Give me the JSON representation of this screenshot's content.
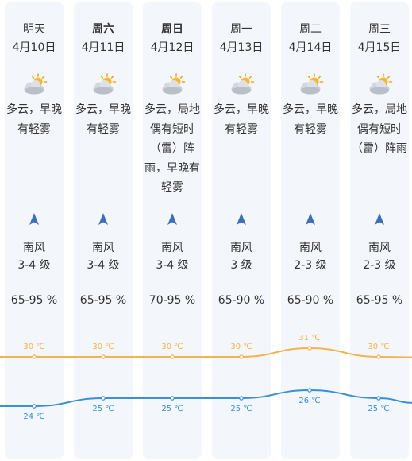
{
  "days": [
    {
      "day": "明天",
      "bold": false,
      "date": "4月10日",
      "weather_icon": "partly-cloudy-icon",
      "desc": [
        "多云，早晚",
        "有轻雾"
      ],
      "wind_direction_icon": "wind-arrow-icon",
      "wind_dir": "南风",
      "wind_level": "3-4 级",
      "humidity": "65-95 %"
    },
    {
      "day": "周六",
      "bold": true,
      "date": "4月11日",
      "weather_icon": "partly-cloudy-icon",
      "desc": [
        "多云，早晚",
        "有轻雾"
      ],
      "wind_direction_icon": "wind-arrow-icon",
      "wind_dir": "南风",
      "wind_level": "3-4 级",
      "humidity": "65-95 %"
    },
    {
      "day": "周日",
      "bold": true,
      "date": "4月12日",
      "weather_icon": "partly-cloudy-icon",
      "desc": [
        "多云，局地",
        "偶有短时",
        "（雷）阵",
        "雨，早晚有",
        "轻雾"
      ],
      "wind_direction_icon": "wind-arrow-icon",
      "wind_dir": "南风",
      "wind_level": "3-4 级",
      "humidity": "70-95 %"
    },
    {
      "day": "周一",
      "bold": false,
      "date": "4月13日",
      "weather_icon": "partly-cloudy-icon",
      "desc": [
        "多云，早晚",
        "有轻雾"
      ],
      "wind_direction_icon": "wind-arrow-icon",
      "wind_dir": "南风",
      "wind_level": "3 级",
      "humidity": "65-90 %"
    },
    {
      "day": "周二",
      "bold": false,
      "date": "4月14日",
      "weather_icon": "partly-cloudy-icon",
      "desc": [
        "多云，早晚",
        "有轻雾"
      ],
      "wind_direction_icon": "wind-arrow-icon",
      "wind_dir": "南风",
      "wind_level": "2-3 级",
      "humidity": "65-90 %"
    },
    {
      "day": "周三",
      "bold": false,
      "date": "4月15日",
      "weather_icon": "partly-cloudy-icon",
      "desc": [
        "多云，局地",
        "偶有短时",
        "（雷）阵雨"
      ],
      "wind_direction_icon": "wind-arrow-icon",
      "wind_dir": "南风",
      "wind_level": "2-3 级",
      "humidity": "65-95 %"
    }
  ],
  "chart_data": {
    "type": "line",
    "x": [
      "4月10日",
      "4月11日",
      "4月12日",
      "4月13日",
      "4月14日",
      "4月15日"
    ],
    "series": [
      {
        "values": [
          30,
          30,
          30,
          30,
          31,
          30
        ],
        "labels": [
          "30 ℃",
          "30 ℃",
          "30 ℃",
          "30 ℃",
          "31 ℃",
          "30 ℃"
        ],
        "color": "#f4b350"
      },
      {
        "values": [
          24,
          25,
          25,
          25,
          26,
          25
        ],
        "labels": [
          "24 ℃",
          "25 ℃",
          "25 ℃",
          "25 ℃",
          "26 ℃",
          "25 ℃"
        ],
        "color": "#3a8fd6"
      }
    ]
  },
  "colors": {
    "column_bg": "#f3f6fa",
    "text": "#333333",
    "high_line": "#f4b350",
    "low_line": "#3a8fd6",
    "arrow": "#3d6fb6"
  }
}
